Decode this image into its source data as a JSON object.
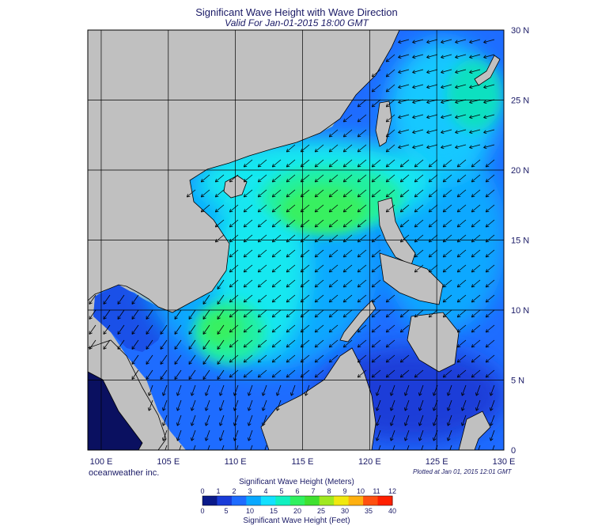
{
  "header": {
    "title": "Significant Wave Height with Wave Direction",
    "subtitle": "Valid For Jan-01-2015 18:00 GMT"
  },
  "footer": {
    "company": "oceanweather inc.",
    "plotted": "Plotted at Jan 01, 2015 12:01 GMT"
  },
  "map": {
    "lon_labels": [
      "100 E",
      "105 E",
      "110 E",
      "115 E",
      "120 E",
      "125 E",
      "130 E"
    ],
    "lat_labels": [
      "30 N",
      "25 N",
      "20 N",
      "15 N",
      "10 N",
      "5 N",
      "0"
    ],
    "land_color": "#c0c0c0",
    "grid_color": "#000000"
  },
  "legend": {
    "meters_label": "Significant Wave Height (Meters)",
    "feet_label": "Significant Wave Height (Feet)",
    "meters_ticks": [
      "0",
      "1",
      "2",
      "3",
      "4",
      "5",
      "6",
      "7",
      "8",
      "9",
      "10",
      "11",
      "12"
    ],
    "feet_ticks": [
      "0",
      "5",
      "10",
      "15",
      "20",
      "25",
      "30",
      "35",
      "40"
    ],
    "colors": [
      "#0a1a8a",
      "#1a3cd8",
      "#1f6cff",
      "#0aa8ff",
      "#12e0ff",
      "#10f0c0",
      "#30f060",
      "#40e030",
      "#a0e820",
      "#f0e810",
      "#ffb010",
      "#ff5010",
      "#ff2000"
    ]
  },
  "chart_data": {
    "type": "heatmap",
    "title": "Significant Wave Height with Wave Direction",
    "subtitle": "Valid For Jan-01-2015 18:00 GMT",
    "xlabel": "",
    "ylabel": "",
    "xlim": [
      99,
      130
    ],
    "ylim": [
      0,
      30
    ],
    "x_ticks": [
      100,
      105,
      110,
      115,
      120,
      125,
      130
    ],
    "y_ticks": [
      0,
      5,
      10,
      15,
      20,
      25,
      30
    ],
    "colorbar": {
      "units": [
        "Meters",
        "Feet"
      ],
      "range_m": [
        0,
        12
      ],
      "range_ft": [
        0,
        40
      ]
    },
    "peak_region": {
      "lon_range": [
        114,
        119
      ],
      "lat_range": [
        16,
        21
      ],
      "height_m_approx": 4.5
    },
    "secondary_peak": {
      "lon_range": [
        108,
        111
      ],
      "lat_range": [
        7,
        10
      ],
      "height_m_approx": 4
    },
    "prevailing_wave_direction": "toward SW (NE monsoon)",
    "grid": true
  }
}
